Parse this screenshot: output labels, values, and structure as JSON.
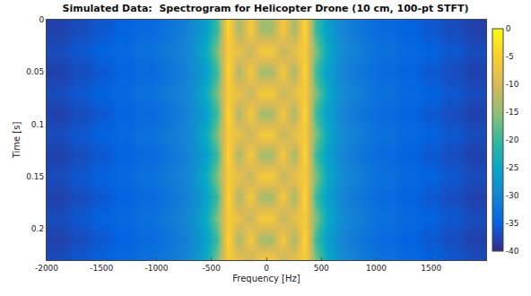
{
  "chart_data": {
    "type": "heatmap",
    "title": "Simulated Data:  Spectrogram for Helicopter Drone (10 cm, 100-pt STFT)",
    "x_label": "Frequency [Hz]",
    "y_label": "Time [s]",
    "xlim": [
      -2000,
      2000
    ],
    "xticks": [
      -2000,
      -1500,
      -1000,
      -500,
      0,
      500,
      1000,
      1500
    ],
    "ylim": [
      0,
      0.23
    ],
    "yticks": [
      0,
      0.05,
      0.1,
      0.15,
      0.2
    ],
    "grid": false,
    "x": [
      -1950,
      -1850,
      -1750,
      -1650,
      -1550,
      -1450,
      -1350,
      -1250,
      -1150,
      -1050,
      -950,
      -850,
      -750,
      -650,
      -550,
      -450,
      -350,
      -250,
      -150,
      -50,
      50,
      150,
      250,
      350,
      450,
      550,
      650,
      750,
      850,
      950,
      1050,
      1150,
      1250,
      1350,
      1450,
      1550,
      1650,
      1750,
      1850,
      1950
    ],
    "y": [
      0.01,
      0.03,
      0.05,
      0.07,
      0.09,
      0.11,
      0.13,
      0.15,
      0.17,
      0.19,
      0.21,
      0.23
    ],
    "z": [
      [
        -38,
        -38,
        -37,
        -37,
        -36,
        -36,
        -35,
        -35,
        -34,
        -34,
        -33,
        -32,
        -31,
        -29,
        -26,
        -20,
        -4,
        -14,
        -6,
        -14,
        -14,
        -6,
        -14,
        -4,
        -20,
        -26,
        -29,
        -31,
        -32,
        -33,
        -34,
        -34,
        -35,
        -35,
        -36,
        -36,
        -37,
        -37,
        -38,
        -38
      ],
      [
        -37,
        -37,
        -36,
        -36,
        -35,
        -35,
        -34,
        -34,
        -33,
        -33,
        -32,
        -31,
        -30,
        -28,
        -24,
        -16,
        -6,
        -8,
        -12,
        -6,
        -6,
        -12,
        -8,
        -6,
        -16,
        -24,
        -28,
        -30,
        -31,
        -32,
        -33,
        -33,
        -34,
        -34,
        -35,
        -35,
        -36,
        -36,
        -37,
        -37
      ],
      [
        -38,
        -38,
        -37,
        -37,
        -36,
        -36,
        -35,
        -35,
        -34,
        -34,
        -33,
        -32,
        -31,
        -29,
        -26,
        -20,
        -4,
        -14,
        -6,
        -14,
        -14,
        -6,
        -14,
        -4,
        -20,
        -26,
        -29,
        -31,
        -32,
        -33,
        -34,
        -34,
        -35,
        -35,
        -36,
        -36,
        -37,
        -37,
        -38,
        -38
      ],
      [
        -37,
        -37,
        -36,
        -36,
        -35,
        -35,
        -34,
        -34,
        -33,
        -33,
        -32,
        -31,
        -30,
        -28,
        -24,
        -16,
        -6,
        -8,
        -12,
        -6,
        -6,
        -12,
        -8,
        -6,
        -16,
        -24,
        -28,
        -30,
        -31,
        -32,
        -33,
        -33,
        -34,
        -34,
        -35,
        -35,
        -36,
        -36,
        -37,
        -37
      ],
      [
        -38,
        -38,
        -37,
        -37,
        -36,
        -36,
        -35,
        -35,
        -34,
        -34,
        -33,
        -32,
        -31,
        -29,
        -26,
        -20,
        -4,
        -14,
        -6,
        -14,
        -14,
        -6,
        -14,
        -4,
        -20,
        -26,
        -29,
        -31,
        -32,
        -33,
        -34,
        -34,
        -35,
        -35,
        -36,
        -36,
        -37,
        -37,
        -38,
        -38
      ],
      [
        -37,
        -37,
        -36,
        -36,
        -35,
        -35,
        -34,
        -34,
        -33,
        -33,
        -32,
        -31,
        -30,
        -28,
        -24,
        -16,
        -6,
        -8,
        -12,
        -6,
        -6,
        -12,
        -8,
        -6,
        -16,
        -24,
        -28,
        -30,
        -31,
        -32,
        -33,
        -33,
        -34,
        -34,
        -35,
        -35,
        -36,
        -36,
        -37,
        -37
      ],
      [
        -38,
        -38,
        -37,
        -37,
        -36,
        -36,
        -35,
        -35,
        -34,
        -34,
        -33,
        -32,
        -31,
        -29,
        -26,
        -20,
        -4,
        -14,
        -6,
        -14,
        -14,
        -6,
        -14,
        -4,
        -20,
        -26,
        -29,
        -31,
        -32,
        -33,
        -34,
        -34,
        -35,
        -35,
        -36,
        -36,
        -37,
        -37,
        -38,
        -38
      ],
      [
        -37,
        -37,
        -36,
        -36,
        -35,
        -35,
        -34,
        -34,
        -33,
        -33,
        -32,
        -31,
        -30,
        -28,
        -24,
        -16,
        -6,
        -8,
        -12,
        -6,
        -6,
        -12,
        -8,
        -6,
        -16,
        -24,
        -28,
        -30,
        -31,
        -32,
        -33,
        -33,
        -34,
        -34,
        -35,
        -35,
        -36,
        -36,
        -37,
        -37
      ],
      [
        -38,
        -38,
        -37,
        -37,
        -36,
        -36,
        -35,
        -35,
        -34,
        -34,
        -33,
        -32,
        -31,
        -29,
        -26,
        -20,
        -4,
        -14,
        -6,
        -14,
        -14,
        -6,
        -14,
        -4,
        -20,
        -26,
        -29,
        -31,
        -32,
        -33,
        -34,
        -34,
        -35,
        -35,
        -36,
        -36,
        -37,
        -37,
        -38,
        -38
      ],
      [
        -37,
        -37,
        -36,
        -36,
        -35,
        -35,
        -34,
        -34,
        -33,
        -33,
        -32,
        -31,
        -30,
        -28,
        -24,
        -16,
        -6,
        -8,
        -12,
        -6,
        -6,
        -12,
        -8,
        -6,
        -16,
        -24,
        -28,
        -30,
        -31,
        -32,
        -33,
        -33,
        -34,
        -34,
        -35,
        -35,
        -36,
        -36,
        -37,
        -37
      ],
      [
        -38,
        -38,
        -37,
        -37,
        -36,
        -36,
        -35,
        -35,
        -34,
        -34,
        -33,
        -32,
        -31,
        -29,
        -26,
        -20,
        -4,
        -14,
        -6,
        -14,
        -14,
        -6,
        -14,
        -4,
        -20,
        -26,
        -29,
        -31,
        -32,
        -33,
        -34,
        -34,
        -35,
        -35,
        -36,
        -36,
        -37,
        -37,
        -38,
        -38
      ],
      [
        -37,
        -37,
        -36,
        -36,
        -35,
        -35,
        -34,
        -34,
        -33,
        -33,
        -32,
        -31,
        -30,
        -28,
        -24,
        -16,
        -6,
        -8,
        -12,
        -6,
        -6,
        -12,
        -8,
        -6,
        -16,
        -24,
        -28,
        -30,
        -31,
        -32,
        -33,
        -33,
        -34,
        -34,
        -35,
        -35,
        -36,
        -36,
        -37,
        -37
      ]
    ],
    "colorbar": {
      "range": [
        -40,
        0
      ],
      "ticks": [
        0,
        -5,
        -10,
        -15,
        -20,
        -25,
        -30,
        -35,
        -40
      ]
    }
  }
}
